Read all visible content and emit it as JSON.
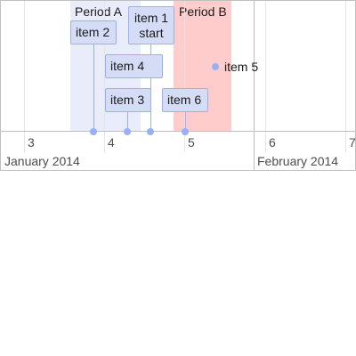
{
  "periods": [
    {
      "label": "Period A",
      "color": "#e9edfb"
    },
    {
      "label": "Period B",
      "color": "#ffcccc"
    }
  ],
  "items": [
    {
      "label": "item 2"
    },
    {
      "label_line1": "item 1",
      "label_line2": "start"
    },
    {
      "label": "item 4"
    },
    {
      "label": "item 3"
    },
    {
      "label": "item 6"
    },
    {
      "label": "item 5"
    }
  ],
  "axis": {
    "minor_labels": [
      "3",
      "4",
      "5",
      "6",
      "7"
    ],
    "major_labels": [
      "January 2014",
      "February 2014"
    ]
  },
  "colors": {
    "item_background": "#d5ddf6",
    "item_border": "#97b0f8",
    "grid": "#e5e5e5",
    "axis": "#bfbfbf"
  }
}
